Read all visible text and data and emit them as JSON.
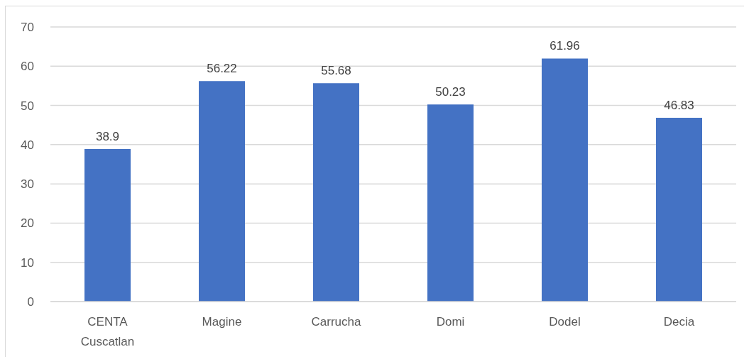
{
  "chart_data": {
    "type": "bar",
    "categories": [
      "CENTA Cuscatlan",
      "Magine",
      "Carrucha",
      "Domi",
      "Dodel",
      "Decia"
    ],
    "values": [
      38.9,
      56.22,
      55.68,
      50.23,
      61.96,
      46.83
    ],
    "color": "#4472c4",
    "ylim": [
      0,
      70
    ],
    "yticks": [
      0,
      10,
      20,
      30,
      40,
      50,
      60,
      70
    ],
    "grid": "y",
    "data_labels": true
  }
}
